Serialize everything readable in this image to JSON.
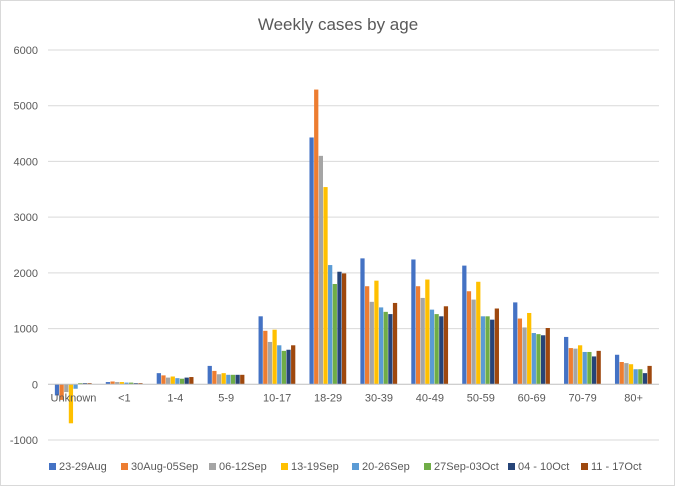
{
  "chart_data": {
    "type": "bar",
    "title": "Weekly cases by age",
    "xlabel": "",
    "ylabel": "",
    "ylim": [
      -1000,
      6000
    ],
    "yticks": [
      -1000,
      0,
      1000,
      2000,
      3000,
      4000,
      5000,
      6000
    ],
    "grid": true,
    "legend_position": "bottom",
    "categories": [
      "Unknown",
      "<1",
      "1-4",
      "5-9",
      "10-17",
      "18-29",
      "30-39",
      "40-49",
      "50-59",
      "60-69",
      "70-79",
      "80+"
    ],
    "series": [
      {
        "name": "23-29Aug",
        "color": "#4472C4",
        "values": [
          -200,
          40,
          200,
          330,
          1220,
          4430,
          2260,
          2240,
          2130,
          1470,
          850,
          530
        ]
      },
      {
        "name": "30Aug-05Sep",
        "color": "#ED7D31",
        "values": [
          -280,
          50,
          160,
          240,
          960,
          5290,
          1760,
          1760,
          1670,
          1180,
          650,
          400
        ]
      },
      {
        "name": "06-12Sep",
        "color": "#A5A5A5",
        "values": [
          -140,
          40,
          120,
          180,
          760,
          4100,
          1480,
          1550,
          1520,
          1020,
          640,
          380
        ]
      },
      {
        "name": "13-19Sep",
        "color": "#FFC000",
        "values": [
          -700,
          40,
          140,
          200,
          980,
          3540,
          1860,
          1880,
          1840,
          1280,
          700,
          360
        ]
      },
      {
        "name": "20-26Sep",
        "color": "#5B9BD5",
        "values": [
          -80,
          30,
          110,
          170,
          700,
          2140,
          1380,
          1340,
          1220,
          920,
          580,
          270
        ]
      },
      {
        "name": "27Sep-03Oct",
        "color": "#70AD47",
        "values": [
          20,
          30,
          100,
          170,
          600,
          1800,
          1300,
          1260,
          1220,
          900,
          580,
          270
        ]
      },
      {
        "name": "04 - 10Oct",
        "color": "#264478",
        "values": [
          20,
          20,
          120,
          170,
          620,
          2020,
          1260,
          1220,
          1160,
          880,
          500,
          200
        ]
      },
      {
        "name": "11 - 17Oct",
        "color": "#9E480E",
        "values": [
          20,
          20,
          130,
          170,
          700,
          1990,
          1460,
          1400,
          1360,
          1010,
          600,
          330
        ]
      }
    ]
  }
}
